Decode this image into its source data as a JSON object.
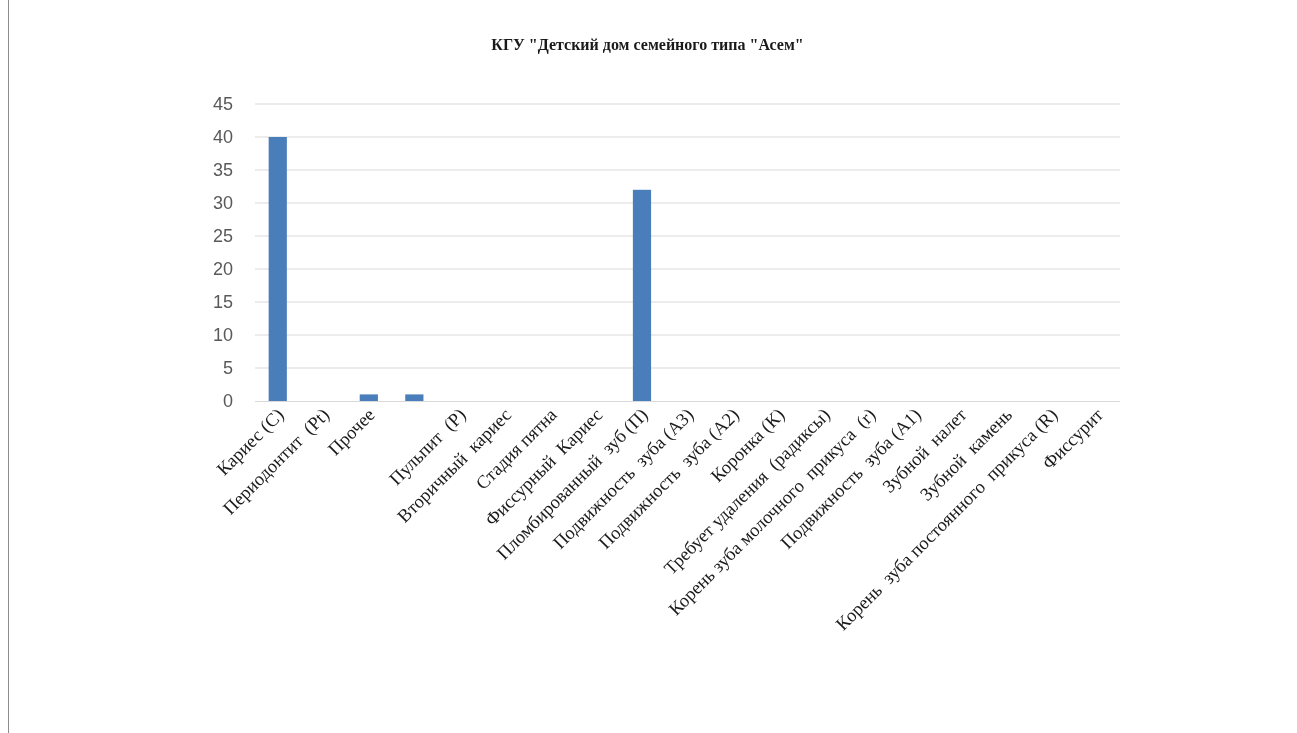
{
  "chart_data": {
    "type": "bar",
    "title": "КГУ \"Детский дом семейного типа \"Асем\"",
    "categories": [
      "Кариес (C)",
      "Периодонтит  (Pt)",
      "Прочее",
      null,
      "Пульпит  (P)",
      "Вторичный  кариес",
      "Стадия пятна",
      "Фиссурный  Кариес",
      "Пломбированный  зуб (П)",
      "Подвижность  зуба (А3)",
      "Подвижность  зуба (А2)",
      "Коронка (К)",
      "Требует удаления  (радиксы)",
      "Корень зуба молочного  прикуса  (r)",
      "Подвижность  зуба (А1)",
      "Зубной  налет",
      "Зубной  камень",
      "Корень  зуба постоянного  прикуса (R)",
      "Фиссурит"
    ],
    "values": [
      40,
      0,
      1,
      1,
      0,
      0,
      0,
      0,
      32,
      0,
      0,
      0,
      0,
      0,
      0,
      0,
      0,
      0,
      0
    ],
    "color": "#4a7ebb",
    "ylim": [
      0,
      45
    ],
    "yticks": [
      0,
      5,
      10,
      15,
      20,
      25,
      30,
      35,
      40,
      45
    ],
    "grid": "y"
  }
}
